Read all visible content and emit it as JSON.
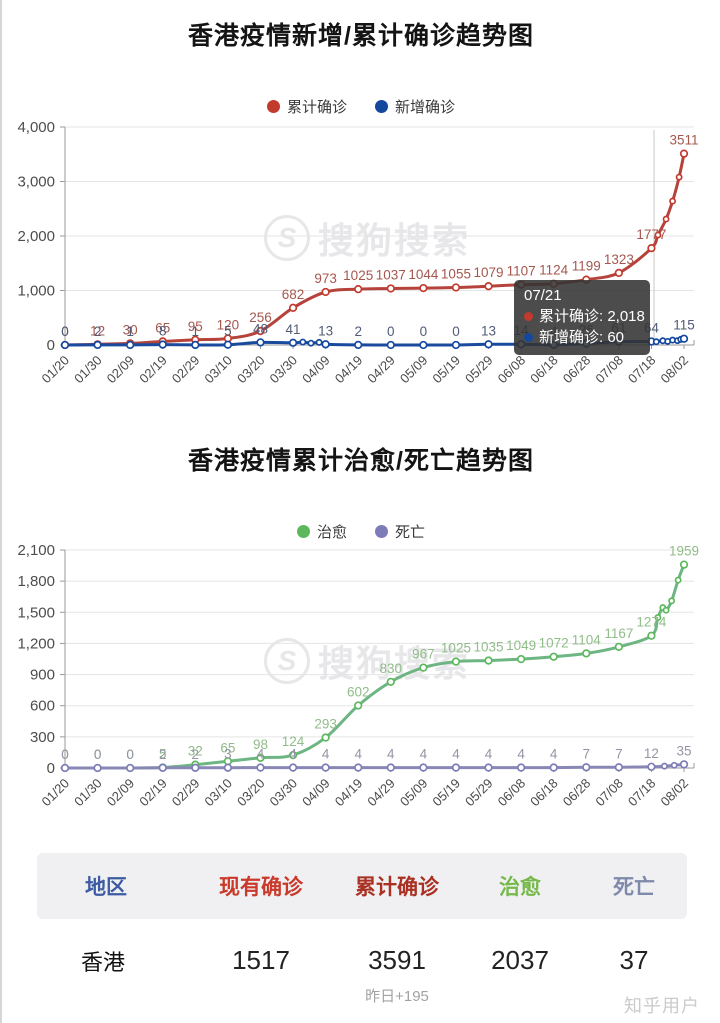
{
  "watermark": {
    "logo_letter": "S",
    "text": "搜狗搜索"
  },
  "zhihu_watermark": "知乎用户",
  "chart_data": [
    {
      "type": "line",
      "title": "香港疫情新增/累计确诊趋势图",
      "x": [
        "01/20",
        "01/30",
        "02/09",
        "02/19",
        "02/29",
        "03/10",
        "03/20",
        "03/30",
        "04/09",
        "04/19",
        "04/29",
        "05/09",
        "05/19",
        "05/29",
        "06/08",
        "06/18",
        "06/28",
        "07/08",
        "07/18",
        "08/02"
      ],
      "y_ticks": [
        "0",
        "1,000",
        "2,000",
        "3,000",
        "4,000"
      ],
      "ylim": [
        0,
        4000
      ],
      "grid": true,
      "legend_position": "top",
      "series": [
        {
          "name": "累计确诊",
          "color": "#b5433c",
          "dot_color": "#c23a2e",
          "label_color": "#a5574e",
          "values": [
            0,
            12,
            30,
            65,
            95,
            120,
            256,
            682,
            973,
            1025,
            1037,
            1044,
            1055,
            1079,
            1107,
            1124,
            1199,
            1323,
            1777,
            3511
          ],
          "extra": [
            [
              18.2,
              2018
            ],
            [
              18.45,
              2310
            ],
            [
              18.65,
              2640
            ],
            [
              18.85,
              3080
            ]
          ]
        },
        {
          "name": "新增确诊",
          "color": "#1a4a9d",
          "dot_color": "#14489f",
          "label_color": "#505b76",
          "values": [
            0,
            2,
            1,
            8,
            1,
            5,
            48,
            41,
            13,
            2,
            0,
            0,
            0,
            13,
            14,
            4,
            26,
            61,
            64,
            115
          ],
          "extra": [
            [
              7.3,
              54
            ],
            [
              7.55,
              34
            ],
            [
              7.8,
              48
            ],
            [
              18.15,
              60
            ],
            [
              18.35,
              78
            ],
            [
              18.5,
              66
            ],
            [
              18.65,
              90
            ],
            [
              18.8,
              80
            ],
            [
              18.9,
              103
            ]
          ]
        }
      ],
      "tooltip": {
        "date": "07/21",
        "anchor_index": 18.08,
        "rows": [
          {
            "label": "累计确诊",
            "value": "2,018",
            "color": "#c23a2e"
          },
          {
            "label": "新增确诊",
            "value": "60",
            "color": "#14489f"
          }
        ]
      }
    },
    {
      "type": "line",
      "title": "香港疫情累计治愈/死亡趋势图",
      "x": [
        "01/20",
        "01/30",
        "02/09",
        "02/19",
        "02/29",
        "03/10",
        "03/20",
        "03/30",
        "04/09",
        "04/19",
        "04/29",
        "05/09",
        "05/19",
        "05/29",
        "06/08",
        "06/18",
        "06/28",
        "07/08",
        "07/18",
        "08/02"
      ],
      "y_ticks": [
        "0",
        "300",
        "600",
        "900",
        "1,200",
        "1,500",
        "1,800",
        "2,100"
      ],
      "ylim": [
        0,
        2100
      ],
      "grid": true,
      "legend_position": "top",
      "series": [
        {
          "name": "治愈",
          "color": "#6db583",
          "dot_color": "#5cb85c",
          "label_color": "#90bd89",
          "values": [
            0,
            0,
            0,
            5,
            32,
            65,
            98,
            124,
            293,
            602,
            830,
            967,
            1025,
            1035,
            1049,
            1072,
            1104,
            1167,
            1274,
            1959
          ],
          "extra": [
            [
              18.2,
              1450
            ],
            [
              18.35,
              1545
            ],
            [
              18.45,
              1520
            ],
            [
              18.62,
              1610
            ],
            [
              18.82,
              1810
            ]
          ]
        },
        {
          "name": "死亡",
          "color": "#8987b6",
          "dot_color": "#7e7cb8",
          "label_color": "#9495a5",
          "values": [
            0,
            0,
            0,
            2,
            2,
            3,
            4,
            4,
            4,
            4,
            4,
            4,
            4,
            4,
            4,
            4,
            7,
            7,
            12,
            35
          ],
          "extra": [
            [
              18.4,
              18
            ],
            [
              18.7,
              26
            ]
          ]
        }
      ]
    }
  ],
  "table": {
    "headers": [
      {
        "label": "地区",
        "color": "#3c5ba2"
      },
      {
        "label": "现有确诊",
        "color": "#c93a2b"
      },
      {
        "label": "累计确诊",
        "color": "#a93023"
      },
      {
        "label": "治愈",
        "color": "#76b94a"
      },
      {
        "label": "死亡",
        "color": "#7e89ab"
      }
    ],
    "rows": [
      {
        "region": "香港",
        "current": "1517",
        "cumulative": "3591",
        "cured": "2037",
        "death": "37",
        "cumulative_sub": "昨日+195"
      }
    ]
  }
}
